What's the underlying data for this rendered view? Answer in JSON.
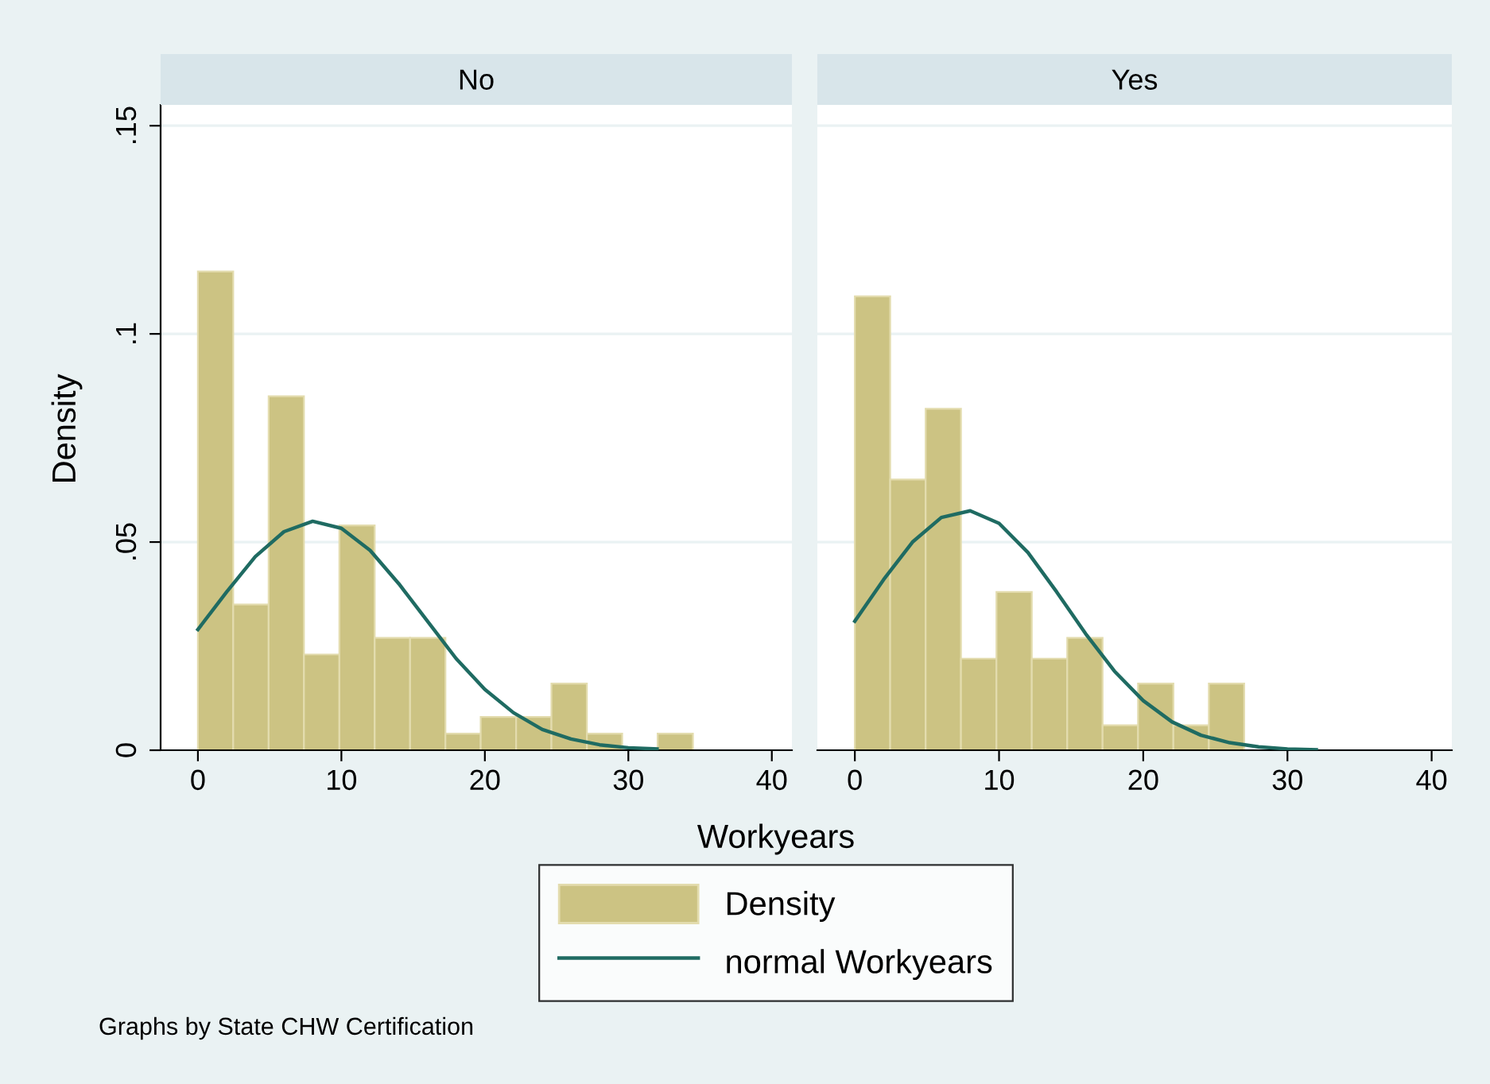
{
  "chart_data": [
    {
      "type": "histogram",
      "title": "No",
      "xlabel": "Workyears",
      "ylabel": "Density",
      "xlim": [
        -2.6,
        41.4
      ],
      "xticks": [
        0,
        10,
        20,
        30,
        40
      ],
      "ylim": [
        0,
        0.155
      ],
      "yticks": [
        {
          "value": 0,
          "label": "0"
        },
        {
          "value": 0.05,
          "label": ".05"
        },
        {
          "value": 0.1,
          "label": ".1"
        },
        {
          "value": 0.15,
          "label": ".15"
        }
      ],
      "grid": "y",
      "legend": "bottom",
      "annotations": [
        "Graphs by State CHW Certification"
      ],
      "series": [
        {
          "name": "Density",
          "color": "#ccc383",
          "bins": [
            0,
            2.46,
            4.93,
            7.39,
            9.86,
            12.32,
            14.79,
            17.25,
            19.71,
            22.18,
            24.64,
            27.11,
            29.57,
            32.04,
            34.5
          ],
          "values": [
            0.115,
            0.035,
            0.085,
            0.023,
            0.054,
            0.027,
            0.027,
            0.004,
            0.008,
            0.008,
            0.016,
            0.004,
            0,
            0.004
          ]
        },
        {
          "name": "normal Workyears",
          "type": "line",
          "color": "#1f6b62",
          "x": [
            0,
            2,
            4,
            6,
            8,
            10,
            12,
            14,
            16,
            18,
            20,
            22,
            24,
            26,
            28,
            30,
            32
          ],
          "values": [
            0.029,
            0.038,
            0.0465,
            0.0525,
            0.055,
            0.0533,
            0.048,
            0.04,
            0.031,
            0.022,
            0.0146,
            0.009,
            0.005,
            0.0027,
            0.0013,
            0.0006,
            0.0003
          ]
        }
      ]
    },
    {
      "type": "histogram",
      "title": "Yes",
      "xlim": [
        -2.6,
        41.4
      ],
      "xticks": [
        0,
        10,
        20,
        30,
        40
      ],
      "ylim": [
        0,
        0.155
      ],
      "yticks": [
        0,
        0.05,
        0.1,
        0.15
      ],
      "grid": "y",
      "tick_labels": "x",
      "series": [
        {
          "color": "#ccc383",
          "bins": [
            0,
            2.45,
            4.91,
            7.36,
            9.82,
            12.27,
            14.73,
            17.18,
            19.64,
            22.09,
            24.55,
            27
          ],
          "values": [
            0.109,
            0.065,
            0.082,
            0.022,
            0.038,
            0.022,
            0.027,
            0.006,
            0.016,
            0.006,
            0.016
          ]
        },
        {
          "type": "line",
          "color": "#1f6b62",
          "x": [
            0,
            2,
            4,
            6,
            8,
            10,
            12,
            14,
            16,
            18,
            20,
            22,
            24,
            26,
            28,
            30,
            32
          ],
          "values": [
            0.031,
            0.041,
            0.05,
            0.0559,
            0.0575,
            0.0545,
            0.0475,
            0.038,
            0.028,
            0.019,
            0.0119,
            0.0068,
            0.0036,
            0.0018,
            0.0008,
            0.0003,
            0.0001
          ]
        }
      ]
    }
  ]
}
